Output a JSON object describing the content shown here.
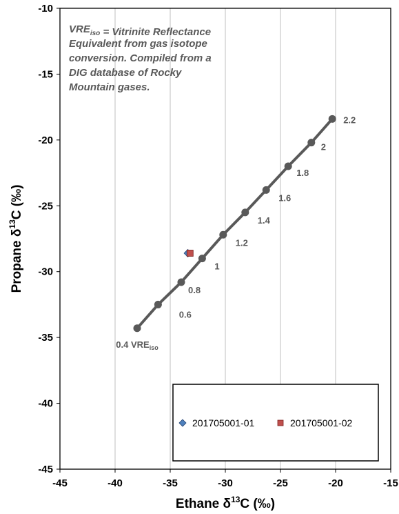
{
  "chart_data": {
    "type": "scatter",
    "xlabel": {
      "base": "Ethane δ",
      "sup": "13",
      "tail": "C (‰)"
    },
    "ylabel": {
      "base": "Propane δ",
      "sup": "13",
      "tail": "C (‰)"
    },
    "xlim": [
      -45,
      -15
    ],
    "ylim": [
      -45,
      -10
    ],
    "xticks": [
      -45,
      -40,
      -35,
      -30,
      -25,
      -20,
      -15
    ],
    "yticks": [
      -45,
      -40,
      -35,
      -30,
      -25,
      -20,
      -15,
      -10
    ],
    "grid": "vertical-only",
    "annotation": {
      "lines": [
        [
          "VRE",
          {
            "sub": "iso"
          },
          " = Vitrinite Reflectance"
        ],
        [
          "Equivalent from gas isotope"
        ],
        [
          "conversion.  Compiled from a"
        ],
        [
          "DIG database  of Rocky"
        ],
        [
          "Mountain  gases."
        ]
      ]
    },
    "reference_line": {
      "name": "VREiso",
      "color": "#595959",
      "points": [
        {
          "x": -38.0,
          "y": -34.3,
          "label": "0.4 VRE",
          "label_sub": "iso"
        },
        {
          "x": -36.1,
          "y": -32.5,
          "label": ""
        },
        {
          "x": -34.0,
          "y": -30.8,
          "label": "0.8"
        },
        {
          "x": -32.1,
          "y": -29.0,
          "label": "1"
        },
        {
          "x": -30.2,
          "y": -27.2,
          "label": "1.2"
        },
        {
          "x": -28.2,
          "y": -25.5,
          "label": "1.4"
        },
        {
          "x": -26.3,
          "y": -23.8,
          "label": "1.6"
        },
        {
          "x": -24.3,
          "y": -22.0,
          "label": "1.8"
        },
        {
          "x": -22.2,
          "y": -20.2,
          "label": "2"
        },
        {
          "x": -20.3,
          "y": -18.4,
          "label": "2.2"
        }
      ],
      "extra_labels": [
        {
          "text": "0.6",
          "x": -34.2,
          "y": -33.5
        }
      ]
    },
    "series": [
      {
        "name": "201705001-01",
        "marker": "diamond",
        "color": "#4F81BD",
        "x": [
          -33.4
        ],
        "y": [
          -28.6
        ]
      },
      {
        "name": "201705001-02",
        "marker": "square",
        "color": "#C0504D",
        "x": [
          -33.2
        ],
        "y": [
          -28.6
        ]
      }
    ],
    "legend_position": "bottom-right"
  }
}
